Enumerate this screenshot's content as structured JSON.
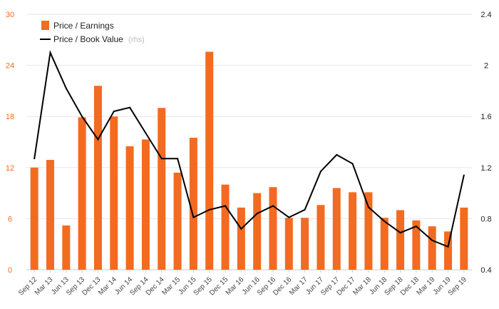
{
  "chart_data": {
    "type": "bar",
    "categories": [
      "Sep 12",
      "Mar 13",
      "Jun 13",
      "Sep 13",
      "Dec 13",
      "Mar 14",
      "Jun 14",
      "Sep 14",
      "Dec 14",
      "Mar 15",
      "Jun 15",
      "Sep 15",
      "Dec 15",
      "Mar 16",
      "Jun 16",
      "Sep 16",
      "Dec 16",
      "Mar 17",
      "Jun 17",
      "Sep 17",
      "Dec 17",
      "Mar 18",
      "Jun 18",
      "Sep 18",
      "Dec 18",
      "Mar 19",
      "Jun 19",
      "Sep 19"
    ],
    "series": [
      {
        "name": "Price / Earnings",
        "type": "bar",
        "axis": "left",
        "color": "#f26b21",
        "values": [
          12.0,
          12.9,
          5.2,
          17.9,
          21.6,
          18.0,
          14.5,
          15.3,
          19.0,
          11.4,
          15.5,
          25.6,
          10.0,
          7.3,
          9.0,
          9.7,
          6.1,
          6.1,
          7.6,
          9.6,
          9.1,
          9.1,
          6.1,
          7.0,
          5.8,
          5.1,
          4.5,
          7.3
        ]
      },
      {
        "name": "Price / Book Value",
        "name_note": "(rhs)",
        "type": "line",
        "axis": "right",
        "color": "#000000",
        "values": [
          1.27,
          2.1,
          1.82,
          1.6,
          1.42,
          1.64,
          1.67,
          1.47,
          1.27,
          1.27,
          0.81,
          0.87,
          0.9,
          0.72,
          0.84,
          0.9,
          0.81,
          0.87,
          1.17,
          1.3,
          1.23,
          0.89,
          0.78,
          0.69,
          0.74,
          0.63,
          0.58,
          1.14
        ]
      }
    ],
    "y_left": {
      "ylim": [
        0,
        30
      ],
      "ticks": [
        "0",
        "6",
        "12",
        "18",
        "24",
        "30"
      ]
    },
    "y_right": {
      "ylim": [
        0.4,
        2.4
      ],
      "ticks": [
        "0.4",
        "0.8",
        "1.2",
        "1.6",
        "2",
        "2.4"
      ]
    },
    "grid": true,
    "legend_position": "top-left"
  }
}
